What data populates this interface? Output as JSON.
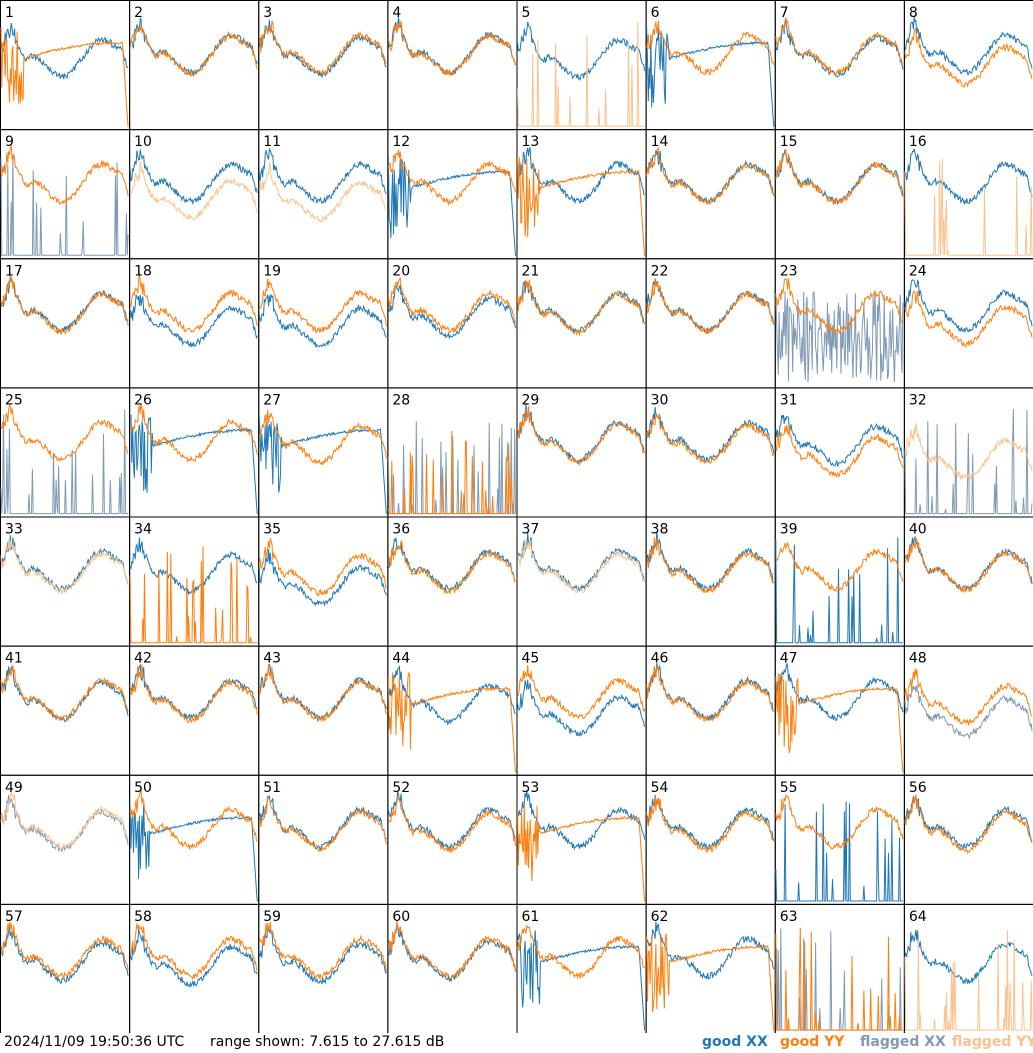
{
  "footer": {
    "timestamp": "2024/11/09 19:50:36 UTC",
    "range_text": "range shown: 7.615 to 27.615 dB"
  },
  "chart_data": {
    "type": "line",
    "title": "",
    "xlabel": "",
    "ylabel": "",
    "ylim": [
      7.615,
      27.615
    ],
    "units": "dB",
    "grid": false,
    "layout": "8x8 small multiples",
    "legend_position": "bottom-right",
    "legend": [
      {
        "status": "good",
        "pol": "XX",
        "color": "#1f77b4"
      },
      {
        "status": "good",
        "pol": "YY",
        "color": "#ff7f0e"
      },
      {
        "status": "flagged",
        "pol": "XX",
        "color": "#7f9ab5"
      },
      {
        "status": "flagged",
        "pol": "YY",
        "color": "#f9c38f"
      }
    ],
    "panels": [
      {
        "label": "1",
        "xx": "good",
        "yy": "good",
        "xx_shape": "normal",
        "yy_shape": "hump",
        "xx_off": 0.4,
        "yy_off": 0.0
      },
      {
        "label": "2",
        "xx": "good",
        "yy": "good",
        "xx_shape": "normal",
        "yy_shape": "normal",
        "xx_off": 0.0,
        "yy_off": 0.1
      },
      {
        "label": "3",
        "xx": "good",
        "yy": "good",
        "xx_shape": "normal",
        "yy_shape": "normal",
        "xx_off": 0.2,
        "yy_off": 0.0
      },
      {
        "label": "4",
        "xx": "good",
        "yy": "good",
        "xx_shape": "normal",
        "yy_shape": "normal",
        "xx_off": 0.0,
        "yy_off": 0.1
      },
      {
        "label": "5",
        "xx": "good",
        "yy": "flagged",
        "xx_shape": "normal",
        "yy_shape": "spikes",
        "xx_off": 0.5,
        "yy_off": 0.0
      },
      {
        "label": "6",
        "xx": "good",
        "yy": "good",
        "xx_shape": "hump",
        "yy_shape": "normal",
        "xx_off": 0.0,
        "yy_off": 0.0
      },
      {
        "label": "7",
        "xx": "good",
        "yy": "good",
        "xx_shape": "normal",
        "yy_shape": "normal",
        "xx_off": 0.2,
        "yy_off": 0.0
      },
      {
        "label": "8",
        "xx": "good",
        "yy": "good",
        "xx_shape": "normal",
        "yy_shape": "normal",
        "xx_off": 0.0,
        "yy_off": 1.2
      },
      {
        "label": "9",
        "xx": "flagged",
        "yy": "good",
        "xx_shape": "spikes",
        "yy_shape": "normal",
        "xx_off": 0.0,
        "yy_off": 0.0
      },
      {
        "label": "10",
        "xx": "good",
        "yy": "flagged",
        "xx_shape": "normal",
        "yy_shape": "normal",
        "xx_off": 0.0,
        "yy_off": 1.6
      },
      {
        "label": "11",
        "xx": "good",
        "yy": "flagged",
        "xx_shape": "normal",
        "yy_shape": "normal",
        "xx_off": 0.0,
        "yy_off": 1.8
      },
      {
        "label": "12",
        "xx": "good",
        "yy": "good",
        "xx_shape": "hump",
        "yy_shape": "normal",
        "xx_off": 0.0,
        "yy_off": 0.0
      },
      {
        "label": "13",
        "xx": "good",
        "yy": "good",
        "xx_shape": "normal",
        "yy_shape": "hump",
        "xx_off": 0.0,
        "yy_off": 0.0
      },
      {
        "label": "14",
        "xx": "good",
        "yy": "good",
        "xx_shape": "normal",
        "yy_shape": "normal",
        "xx_off": 0.0,
        "yy_off": 0.1
      },
      {
        "label": "15",
        "xx": "good",
        "yy": "good",
        "xx_shape": "normal",
        "yy_shape": "normal",
        "xx_off": 0.0,
        "yy_off": 0.1
      },
      {
        "label": "16",
        "xx": "good",
        "yy": "flagged",
        "xx_shape": "normal",
        "yy_shape": "spikes",
        "xx_off": 0.0,
        "yy_off": 0.0
      },
      {
        "label": "17",
        "xx": "good",
        "yy": "good",
        "xx_shape": "normal",
        "yy_shape": "normal",
        "xx_off": 0.0,
        "yy_off": 0.1
      },
      {
        "label": "18",
        "xx": "good",
        "yy": "good",
        "xx_shape": "normal",
        "yy_shape": "normal",
        "xx_off": 1.4,
        "yy_off": 0.0
      },
      {
        "label": "19",
        "xx": "good",
        "yy": "good",
        "xx_shape": "normal",
        "yy_shape": "normal",
        "xx_off": 1.5,
        "yy_off": 0.0
      },
      {
        "label": "20",
        "xx": "good",
        "yy": "good",
        "xx_shape": "normal",
        "yy_shape": "normal",
        "xx_off": 0.5,
        "yy_off": 0.0
      },
      {
        "label": "21",
        "xx": "good",
        "yy": "good",
        "xx_shape": "normal",
        "yy_shape": "normal",
        "xx_off": 0.0,
        "yy_off": 0.1
      },
      {
        "label": "22",
        "xx": "good",
        "yy": "good",
        "xx_shape": "normal",
        "yy_shape": "normal",
        "xx_off": 0.0,
        "yy_off": 0.1
      },
      {
        "label": "23",
        "xx": "flagged",
        "yy": "good",
        "xx_shape": "noise",
        "yy_shape": "normal",
        "xx_off": 0.0,
        "yy_off": 0.0
      },
      {
        "label": "24",
        "xx": "good",
        "yy": "good",
        "xx_shape": "normal",
        "yy_shape": "normal",
        "xx_off": 0.0,
        "yy_off": 1.3
      },
      {
        "label": "25",
        "xx": "flagged",
        "yy": "good",
        "xx_shape": "spikes",
        "yy_shape": "normal",
        "xx_off": 0.0,
        "yy_off": 0.0
      },
      {
        "label": "26",
        "xx": "good",
        "yy": "good",
        "xx_shape": "hump",
        "yy_shape": "normal",
        "xx_off": 0.0,
        "yy_off": 0.0
      },
      {
        "label": "27",
        "xx": "good",
        "yy": "good",
        "xx_shape": "hump",
        "yy_shape": "normal",
        "xx_off": 0.0,
        "yy_off": 0.3
      },
      {
        "label": "28",
        "xx": "flagged",
        "yy": "good",
        "xx_shape": "spikes",
        "yy_shape": "spikes",
        "xx_off": 0.0,
        "yy_off": 0.0
      },
      {
        "label": "29",
        "xx": "good",
        "yy": "good",
        "xx_shape": "normal",
        "yy_shape": "normal",
        "xx_off": 0.0,
        "yy_off": 0.2
      },
      {
        "label": "30",
        "xx": "good",
        "yy": "good",
        "xx_shape": "normal",
        "yy_shape": "normal",
        "xx_off": 0.0,
        "yy_off": 0.3
      },
      {
        "label": "31",
        "xx": "good",
        "yy": "good",
        "xx_shape": "normal",
        "yy_shape": "normal",
        "xx_off": 0.4,
        "yy_off": 1.5
      },
      {
        "label": "32",
        "xx": "flagged",
        "yy": "flagged",
        "xx_shape": "spikes",
        "yy_shape": "normal",
        "xx_off": 0.0,
        "yy_off": 1.8
      },
      {
        "label": "33",
        "xx": "good",
        "yy": "flagged",
        "xx_shape": "normal",
        "yy_shape": "normal",
        "xx_off": 0.0,
        "yy_off": 0.2
      },
      {
        "label": "34",
        "xx": "good",
        "yy": "good",
        "xx_shape": "normal",
        "yy_shape": "spikes",
        "xx_off": 0.3,
        "yy_off": 0.0
      },
      {
        "label": "35",
        "xx": "good",
        "yy": "good",
        "xx_shape": "normal",
        "yy_shape": "normal",
        "xx_off": 1.5,
        "yy_off": 0.4
      },
      {
        "label": "36",
        "xx": "good",
        "yy": "good",
        "xx_shape": "normal",
        "yy_shape": "normal",
        "xx_off": 0.0,
        "yy_off": 0.2
      },
      {
        "label": "37",
        "xx": "good",
        "yy": "flagged",
        "xx_shape": "normal",
        "yy_shape": "normal",
        "xx_off": 0.0,
        "yy_off": 0.2
      },
      {
        "label": "38",
        "xx": "good",
        "yy": "good",
        "xx_shape": "normal",
        "yy_shape": "normal",
        "xx_off": 0.0,
        "yy_off": 0.2
      },
      {
        "label": "39",
        "xx": "good",
        "yy": "good",
        "xx_shape": "spikes",
        "yy_shape": "normal",
        "xx_off": 0.0,
        "yy_off": 0.0
      },
      {
        "label": "40",
        "xx": "good",
        "yy": "good",
        "xx_shape": "normal",
        "yy_shape": "normal",
        "xx_off": 0.0,
        "yy_off": 0.1
      },
      {
        "label": "41",
        "xx": "good",
        "yy": "good",
        "xx_shape": "normal",
        "yy_shape": "normal",
        "xx_off": 0.2,
        "yy_off": 0.0
      },
      {
        "label": "42",
        "xx": "good",
        "yy": "good",
        "xx_shape": "normal",
        "yy_shape": "normal",
        "xx_off": 0.0,
        "yy_off": 0.2
      },
      {
        "label": "43",
        "xx": "good",
        "yy": "good",
        "xx_shape": "normal",
        "yy_shape": "normal",
        "xx_off": 0.0,
        "yy_off": 0.1
      },
      {
        "label": "44",
        "xx": "good",
        "yy": "good",
        "xx_shape": "normal",
        "yy_shape": "hump",
        "xx_off": 0.4,
        "yy_off": 0.0
      },
      {
        "label": "45",
        "xx": "good",
        "yy": "good",
        "xx_shape": "normal",
        "yy_shape": "normal",
        "xx_off": 1.6,
        "yy_off": 0.0
      },
      {
        "label": "46",
        "xx": "good",
        "yy": "good",
        "xx_shape": "normal",
        "yy_shape": "normal",
        "xx_off": 0.0,
        "yy_off": 0.2
      },
      {
        "label": "47",
        "xx": "good",
        "yy": "good",
        "xx_shape": "normal",
        "yy_shape": "hump",
        "xx_off": 0.0,
        "yy_off": 0.0
      },
      {
        "label": "48",
        "xx": "flagged",
        "yy": "good",
        "xx_shape": "normal",
        "yy_shape": "normal",
        "xx_off": 1.8,
        "yy_off": 0.5
      },
      {
        "label": "49",
        "xx": "flagged",
        "yy": "flagged",
        "xx_shape": "normal",
        "yy_shape": "normal",
        "xx_off": 0.2,
        "yy_off": 0.0
      },
      {
        "label": "50",
        "xx": "good",
        "yy": "good",
        "xx_shape": "hump",
        "yy_shape": "normal",
        "xx_off": 0.0,
        "yy_off": 0.0
      },
      {
        "label": "51",
        "xx": "good",
        "yy": "good",
        "xx_shape": "normal",
        "yy_shape": "normal",
        "xx_off": 0.0,
        "yy_off": 0.2
      },
      {
        "label": "52",
        "xx": "good",
        "yy": "good",
        "xx_shape": "normal",
        "yy_shape": "normal",
        "xx_off": 0.0,
        "yy_off": 0.3
      },
      {
        "label": "53",
        "xx": "good",
        "yy": "good",
        "xx_shape": "normal",
        "yy_shape": "hump",
        "xx_off": 0.0,
        "yy_off": 0.0
      },
      {
        "label": "54",
        "xx": "good",
        "yy": "good",
        "xx_shape": "normal",
        "yy_shape": "normal",
        "xx_off": 0.0,
        "yy_off": 0.3
      },
      {
        "label": "55",
        "xx": "good",
        "yy": "good",
        "xx_shape": "spikes",
        "yy_shape": "normal",
        "xx_off": 0.0,
        "yy_off": 0.0
      },
      {
        "label": "56",
        "xx": "good",
        "yy": "good",
        "xx_shape": "normal",
        "yy_shape": "normal",
        "xx_off": 0.0,
        "yy_off": 0.3
      },
      {
        "label": "57",
        "xx": "good",
        "yy": "good",
        "xx_shape": "normal",
        "yy_shape": "normal",
        "xx_off": 0.4,
        "yy_off": 0.0
      },
      {
        "label": "58",
        "xx": "good",
        "yy": "good",
        "xx_shape": "normal",
        "yy_shape": "normal",
        "xx_off": 0.8,
        "yy_off": 0.0
      },
      {
        "label": "59",
        "xx": "good",
        "yy": "good",
        "xx_shape": "normal",
        "yy_shape": "normal",
        "xx_off": 0.5,
        "yy_off": 0.0
      },
      {
        "label": "60",
        "xx": "good",
        "yy": "good",
        "xx_shape": "normal",
        "yy_shape": "normal",
        "xx_off": 0.2,
        "yy_off": 0.0
      },
      {
        "label": "61",
        "xx": "good",
        "yy": "good",
        "xx_shape": "hump",
        "yy_shape": "normal",
        "xx_off": 0.0,
        "yy_off": 0.0
      },
      {
        "label": "62",
        "xx": "good",
        "yy": "good",
        "xx_shape": "normal",
        "yy_shape": "hump",
        "xx_off": 0.0,
        "yy_off": 0.0
      },
      {
        "label": "63",
        "xx": "flagged",
        "yy": "good",
        "xx_shape": "spikes",
        "yy_shape": "spikes",
        "xx_off": 0.0,
        "yy_off": 0.0
      },
      {
        "label": "64",
        "xx": "good",
        "yy": "flagged",
        "xx_shape": "normal",
        "yy_shape": "spikes",
        "xx_off": 0.5,
        "yy_off": 0.0
      }
    ]
  }
}
